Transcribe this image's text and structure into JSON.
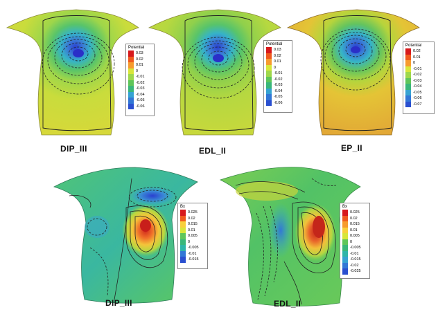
{
  "colorscale": [
    "#d7191c",
    "#f05a1e",
    "#f79b2e",
    "#f8d03c",
    "#d8e63a",
    "#9fd84b",
    "#5fc65a",
    "#3ab77a",
    "#2fb5a8",
    "#36a3d2",
    "#3277d6",
    "#2a4fd0"
  ],
  "panels": [
    {
      "id": "dip-iii-potential",
      "caption": "DIP_III",
      "legend": {
        "title": "Potential",
        "values": [
          "0.03",
          "0.02",
          "0.01",
          "0",
          "-0.01",
          "-0.02",
          "-0.03",
          "-0.04",
          "-0.05",
          "-0.06"
        ]
      }
    },
    {
      "id": "edl-ii-potential",
      "caption": "EDL_II",
      "legend": {
        "title": "Potential",
        "values": [
          "0.03",
          "0.02",
          "0.01",
          "0",
          "-0.01",
          "-0.02",
          "-0.03",
          "-0.04",
          "-0.05",
          "-0.06"
        ]
      }
    },
    {
      "id": "ep-ii-potential",
      "caption": "EP_II",
      "legend": {
        "title": "Potential",
        "values": [
          "0.02",
          "0.01",
          "0",
          "-0.01",
          "-0.02",
          "-0.03",
          "-0.04",
          "-0.05",
          "-0.06",
          "-0.07"
        ]
      }
    },
    {
      "id": "dip-iii-bx",
      "caption": "DIP_III",
      "legend": {
        "title": "Bx",
        "values": [
          "0.025",
          "0.02",
          "0.015",
          "0.01",
          "0.005",
          "0",
          "-0.005",
          "-0.01",
          "-0.015"
        ]
      }
    },
    {
      "id": "edl-ii-bx",
      "caption": "EDL_II",
      "legend": {
        "title": "Bx",
        "values": [
          "0.025",
          "0.02",
          "0.015",
          "0.01",
          "0.005",
          "0",
          "-0.005",
          "-0.01",
          "-0.015",
          "-0.02",
          "-0.025"
        ]
      }
    }
  ]
}
